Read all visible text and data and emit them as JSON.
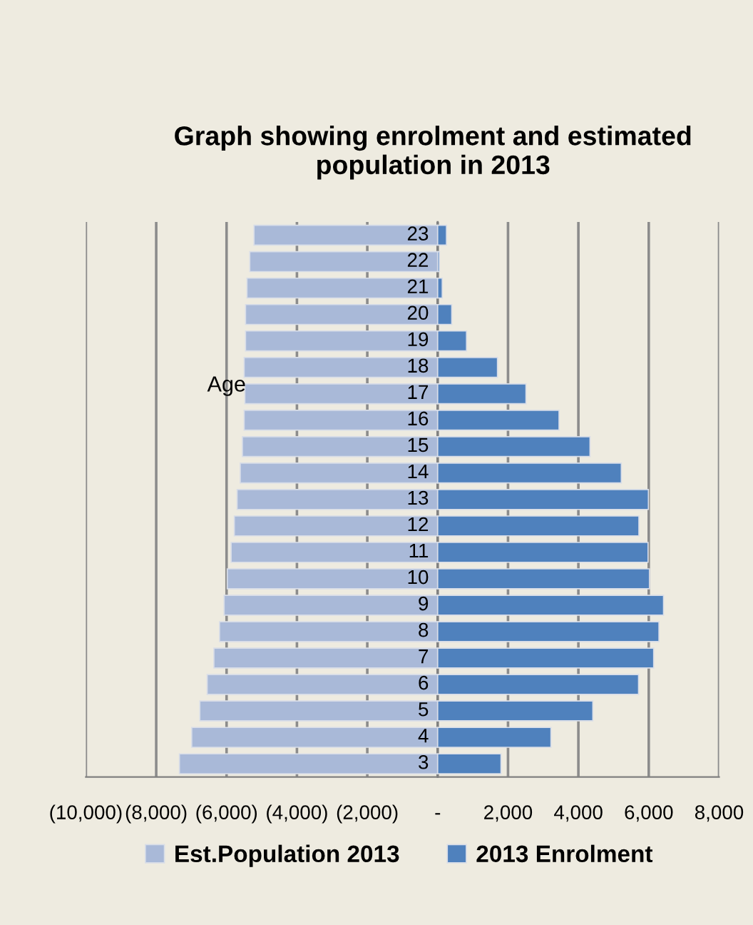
{
  "chart_data": {
    "type": "bar",
    "orientation": "horizontal",
    "title": "Graph showing enrolment and estimated population in 2013",
    "ylabel": "Age",
    "categories": [
      "23",
      "22",
      "21",
      "20",
      "19",
      "18",
      "17",
      "16",
      "15",
      "14",
      "13",
      "12",
      "11",
      "10",
      "9",
      "8",
      "7",
      "6",
      "5",
      "4",
      "3"
    ],
    "series": [
      {
        "name": "Est.Population 2013",
        "color": "#a9b9d8",
        "values": [
          -5220,
          -5340,
          -5420,
          -5460,
          -5460,
          -5500,
          -5480,
          -5500,
          -5550,
          -5610,
          -5700,
          -5780,
          -5870,
          -5980,
          -6070,
          -6200,
          -6360,
          -6550,
          -6760,
          -6990,
          -7340
        ]
      },
      {
        "name": "2013 Enrolment",
        "color": "#4f81bd",
        "values": [
          250,
          50,
          130,
          400,
          820,
          1700,
          2510,
          3450,
          4330,
          5220,
          5990,
          5720,
          5980,
          6020,
          6420,
          6290,
          6140,
          5710,
          4410,
          3220,
          1800
        ]
      }
    ],
    "xlim": [
      -10000,
      8000
    ],
    "xticks": [
      {
        "value": -10000,
        "label": "(10,000)"
      },
      {
        "value": -8000,
        "label": "(8,000)"
      },
      {
        "value": -6000,
        "label": "(6,000)"
      },
      {
        "value": -4000,
        "label": "(4,000)"
      },
      {
        "value": -2000,
        "label": "(2,000)"
      },
      {
        "value": 0,
        "label": "-"
      },
      {
        "value": 2000,
        "label": "2,000"
      },
      {
        "value": 4000,
        "label": "4,000"
      },
      {
        "value": 6000,
        "label": "6,000"
      },
      {
        "value": 8000,
        "label": "8,000"
      }
    ],
    "stacked": true,
    "grid": "x",
    "legend": "bottom"
  }
}
